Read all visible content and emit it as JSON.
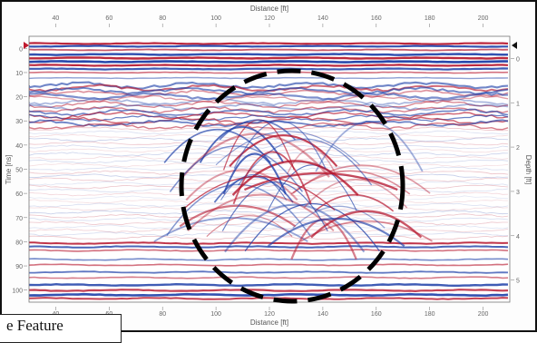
{
  "figure": {
    "top_axis_title": "Distance [ft]",
    "bottom_axis_title": "Distance [ft]",
    "left_axis_title": "Time [ns]",
    "right_axis_title": "Depth [ft]",
    "top_tick_labels": [
      "40",
      "60",
      "80",
      "100",
      "120",
      "140",
      "160",
      "180",
      "200"
    ],
    "bottom_tick_labels": [
      "40",
      "60",
      "80",
      "100",
      "120",
      "140",
      "160",
      "180",
      "200"
    ],
    "left_tick_labels": [
      "0",
      "10",
      "20",
      "30",
      "40",
      "50",
      "60",
      "70",
      "80",
      "90",
      "100"
    ],
    "right_tick_labels": [
      "0",
      "1",
      "2",
      "3",
      "4",
      "5"
    ],
    "highlight": "dashed-circle",
    "colors": {
      "positive": "#b5122a",
      "negative": "#1d3fa8",
      "background": "#ffffff"
    }
  },
  "caption": {
    "text": "e Feature"
  }
}
